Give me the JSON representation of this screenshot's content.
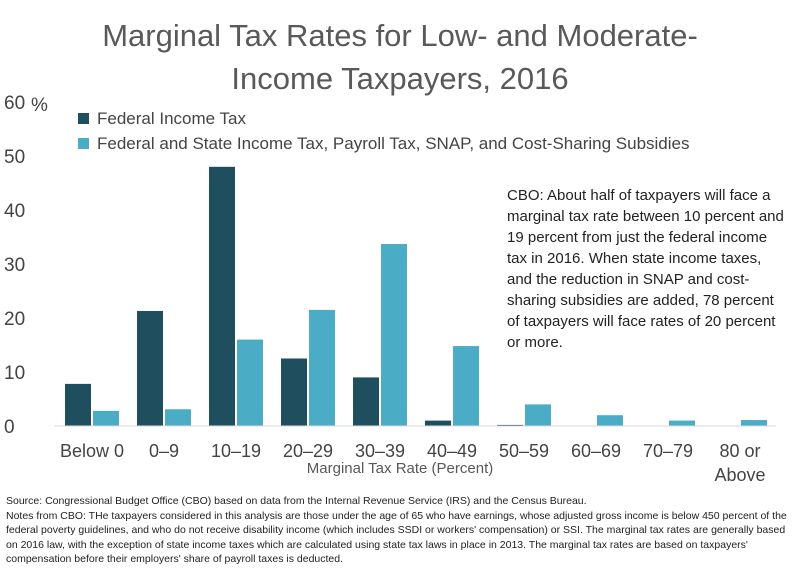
{
  "chart_data": {
    "type": "bar",
    "title": "Marginal Tax Rates for Low- and Moderate-Income Taxpayers, 2016",
    "title_lines": [
      "Marginal Tax Rates for Low- and Moderate-",
      "Income Taxpayers, 2016"
    ],
    "xlabel": "Marginal Tax Rate (Percent)",
    "ylabel": "",
    "ylim": [
      0,
      60
    ],
    "yticks": [
      "0",
      "10",
      "20",
      "30",
      "40",
      "50",
      "60"
    ],
    "y_unit": "%",
    "categories": [
      "Below 0",
      "0–9",
      "10–19",
      "20–29",
      "30–39",
      "40–49",
      "50–59",
      "60–69",
      "70–79",
      "80 or Above"
    ],
    "category_lines": [
      [
        "Below 0"
      ],
      [
        "0–9"
      ],
      [
        "10–19"
      ],
      [
        "20–29"
      ],
      [
        "30–39"
      ],
      [
        "40–49"
      ],
      [
        "50–59"
      ],
      [
        "60–69"
      ],
      [
        "70–79"
      ],
      [
        "80 or",
        "Above"
      ]
    ],
    "series": [
      {
        "name": "Federal Income Tax",
        "color": "#1f4e5f",
        "values": [
          7.8,
          21.3,
          48.0,
          12.5,
          9.0,
          1.0,
          0.2,
          0,
          0,
          0
        ]
      },
      {
        "name": "Federal and State Income Tax, Payroll Tax, SNAP, and Cost-Sharing Subsidies",
        "color": "#4bacc6",
        "values": [
          2.8,
          3.1,
          16.0,
          21.5,
          33.7,
          14.8,
          4.0,
          2.0,
          1.0,
          1.1
        ]
      }
    ],
    "legend_position": "top-left",
    "grid": false,
    "annotation": "CBO: About half of taxpayers will face a marginal tax rate between 10 percent and 19 percent from just the federal income tax in 2016. When state income taxes, and the reduction in SNAP and cost-sharing subsidies are added, 78 percent of taxpayers will face rates of 20 percent or more."
  },
  "footer": {
    "source": "Source: Congressional Budget Office (CBO) based on data from the Internal Revenue Service (IRS) and the Census Bureau.",
    "notes": "Notes from CBO: THe taxpayers considered in this analysis are those under the age of 65 who have earnings, whose adjusted gross income is below 450 percent of the federal poverty guidelines, and who do not receive disability income (which includes SSDI or workers' compensation) or SSI. The marginal tax rates are generally based on 2016 law, with the exception of state income taxes which are calculated using state tax laws in place in 2013. The marginal tax rates are based on taxpayers' compensation before their employers' share of payroll taxes is deducted."
  }
}
